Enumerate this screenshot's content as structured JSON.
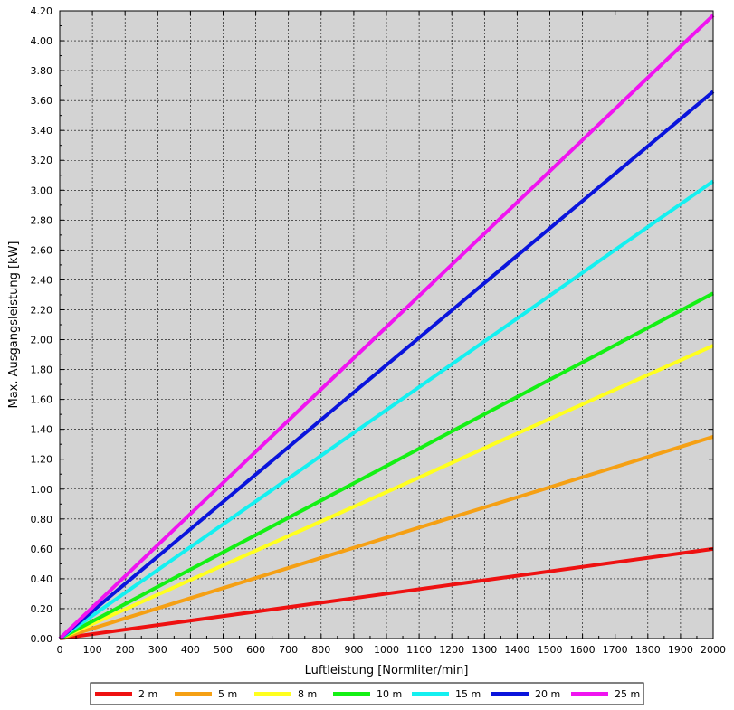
{
  "chart_data": {
    "type": "line",
    "xlabel": "Luftleistung [Normliter/min]",
    "ylabel": "Max. Ausgangsleistung [kW]",
    "xlim": [
      0,
      2000
    ],
    "ylim": [
      0,
      4.2
    ],
    "xticks": [
      0,
      100,
      200,
      300,
      400,
      500,
      600,
      700,
      800,
      900,
      1000,
      1100,
      1200,
      1300,
      1400,
      1500,
      1600,
      1700,
      1800,
      1900,
      2000
    ],
    "yticks": [
      "0.00",
      "0.20",
      "0.40",
      "0.60",
      "0.80",
      "1.00",
      "1.20",
      "1.40",
      "1.60",
      "1.80",
      "2.00",
      "2.20",
      "2.40",
      "2.60",
      "2.80",
      "3.00",
      "3.20",
      "3.40",
      "3.60",
      "3.80",
      "4.00",
      "4.20"
    ],
    "grid": true,
    "plot_background": "#d3d3d3",
    "legend_position": "bottom",
    "x": [
      0,
      2000
    ],
    "series": [
      {
        "name": "2 m",
        "color": "#ee1111",
        "values": [
          0,
          0.6
        ]
      },
      {
        "name": "5 m",
        "color": "#f5a014",
        "values": [
          0,
          1.35
        ]
      },
      {
        "name": "8 m",
        "color": "#ffff1e",
        "values": [
          0,
          1.96
        ]
      },
      {
        "name": "10 m",
        "color": "#14f014",
        "values": [
          0,
          2.31
        ]
      },
      {
        "name": "15 m",
        "color": "#14f0f0",
        "values": [
          0,
          3.06
        ]
      },
      {
        "name": "20 m",
        "color": "#0a14dc",
        "values": [
          0,
          3.66
        ]
      },
      {
        "name": "25 m",
        "color": "#f014f0",
        "values": [
          0,
          4.17
        ]
      }
    ]
  }
}
